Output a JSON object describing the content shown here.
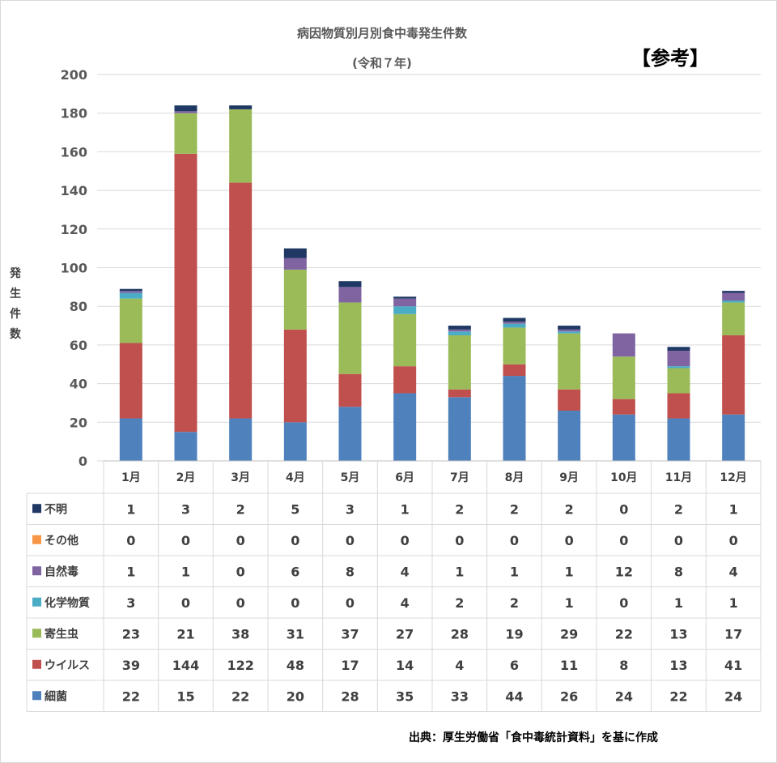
{
  "title": "病因物質別月別食中毒発生件数",
  "subtitle": "(令和７年)",
  "reference_mark": "【参考】",
  "ylabel_chars": [
    "発",
    "生",
    "件",
    "数"
  ],
  "source": "出典：厚生労働省「食中毒統計資料」を基に作成",
  "chart_data": {
    "type": "bar",
    "stacked": true,
    "categories": [
      "1月",
      "2月",
      "3月",
      "4月",
      "5月",
      "6月",
      "7月",
      "8月",
      "9月",
      "10月",
      "11月",
      "12月"
    ],
    "ylim": [
      0,
      200
    ],
    "yticks": [
      0,
      20,
      40,
      60,
      80,
      100,
      120,
      140,
      160,
      180,
      200
    ],
    "grid": true,
    "ylabel": "発生件数",
    "stack_order": [
      "細菌",
      "ウイルス",
      "寄生虫",
      "化学物質",
      "自然毒",
      "その他",
      "不明"
    ],
    "series": [
      {
        "name": "不明",
        "color": "#1f3864",
        "values": [
          1,
          3,
          2,
          5,
          3,
          1,
          2,
          2,
          2,
          0,
          2,
          1
        ]
      },
      {
        "name": "その他",
        "color": "#f79646",
        "values": [
          0,
          0,
          0,
          0,
          0,
          0,
          0,
          0,
          0,
          0,
          0,
          0
        ]
      },
      {
        "name": "自然毒",
        "color": "#8064a2",
        "values": [
          1,
          1,
          0,
          6,
          8,
          4,
          1,
          1,
          1,
          12,
          8,
          4
        ]
      },
      {
        "name": "化学物質",
        "color": "#4bacc6",
        "values": [
          3,
          0,
          0,
          0,
          0,
          4,
          2,
          2,
          1,
          0,
          1,
          1
        ]
      },
      {
        "name": "寄生虫",
        "color": "#9bbb59",
        "values": [
          23,
          21,
          38,
          31,
          37,
          27,
          28,
          19,
          29,
          22,
          13,
          17
        ]
      },
      {
        "name": "ウイルス",
        "color": "#c0504d",
        "values": [
          39,
          144,
          122,
          48,
          17,
          14,
          4,
          6,
          11,
          8,
          13,
          41
        ]
      },
      {
        "name": "細菌",
        "color": "#4f81bd",
        "values": [
          22,
          15,
          22,
          20,
          28,
          35,
          33,
          44,
          26,
          24,
          22,
          24
        ]
      }
    ]
  }
}
